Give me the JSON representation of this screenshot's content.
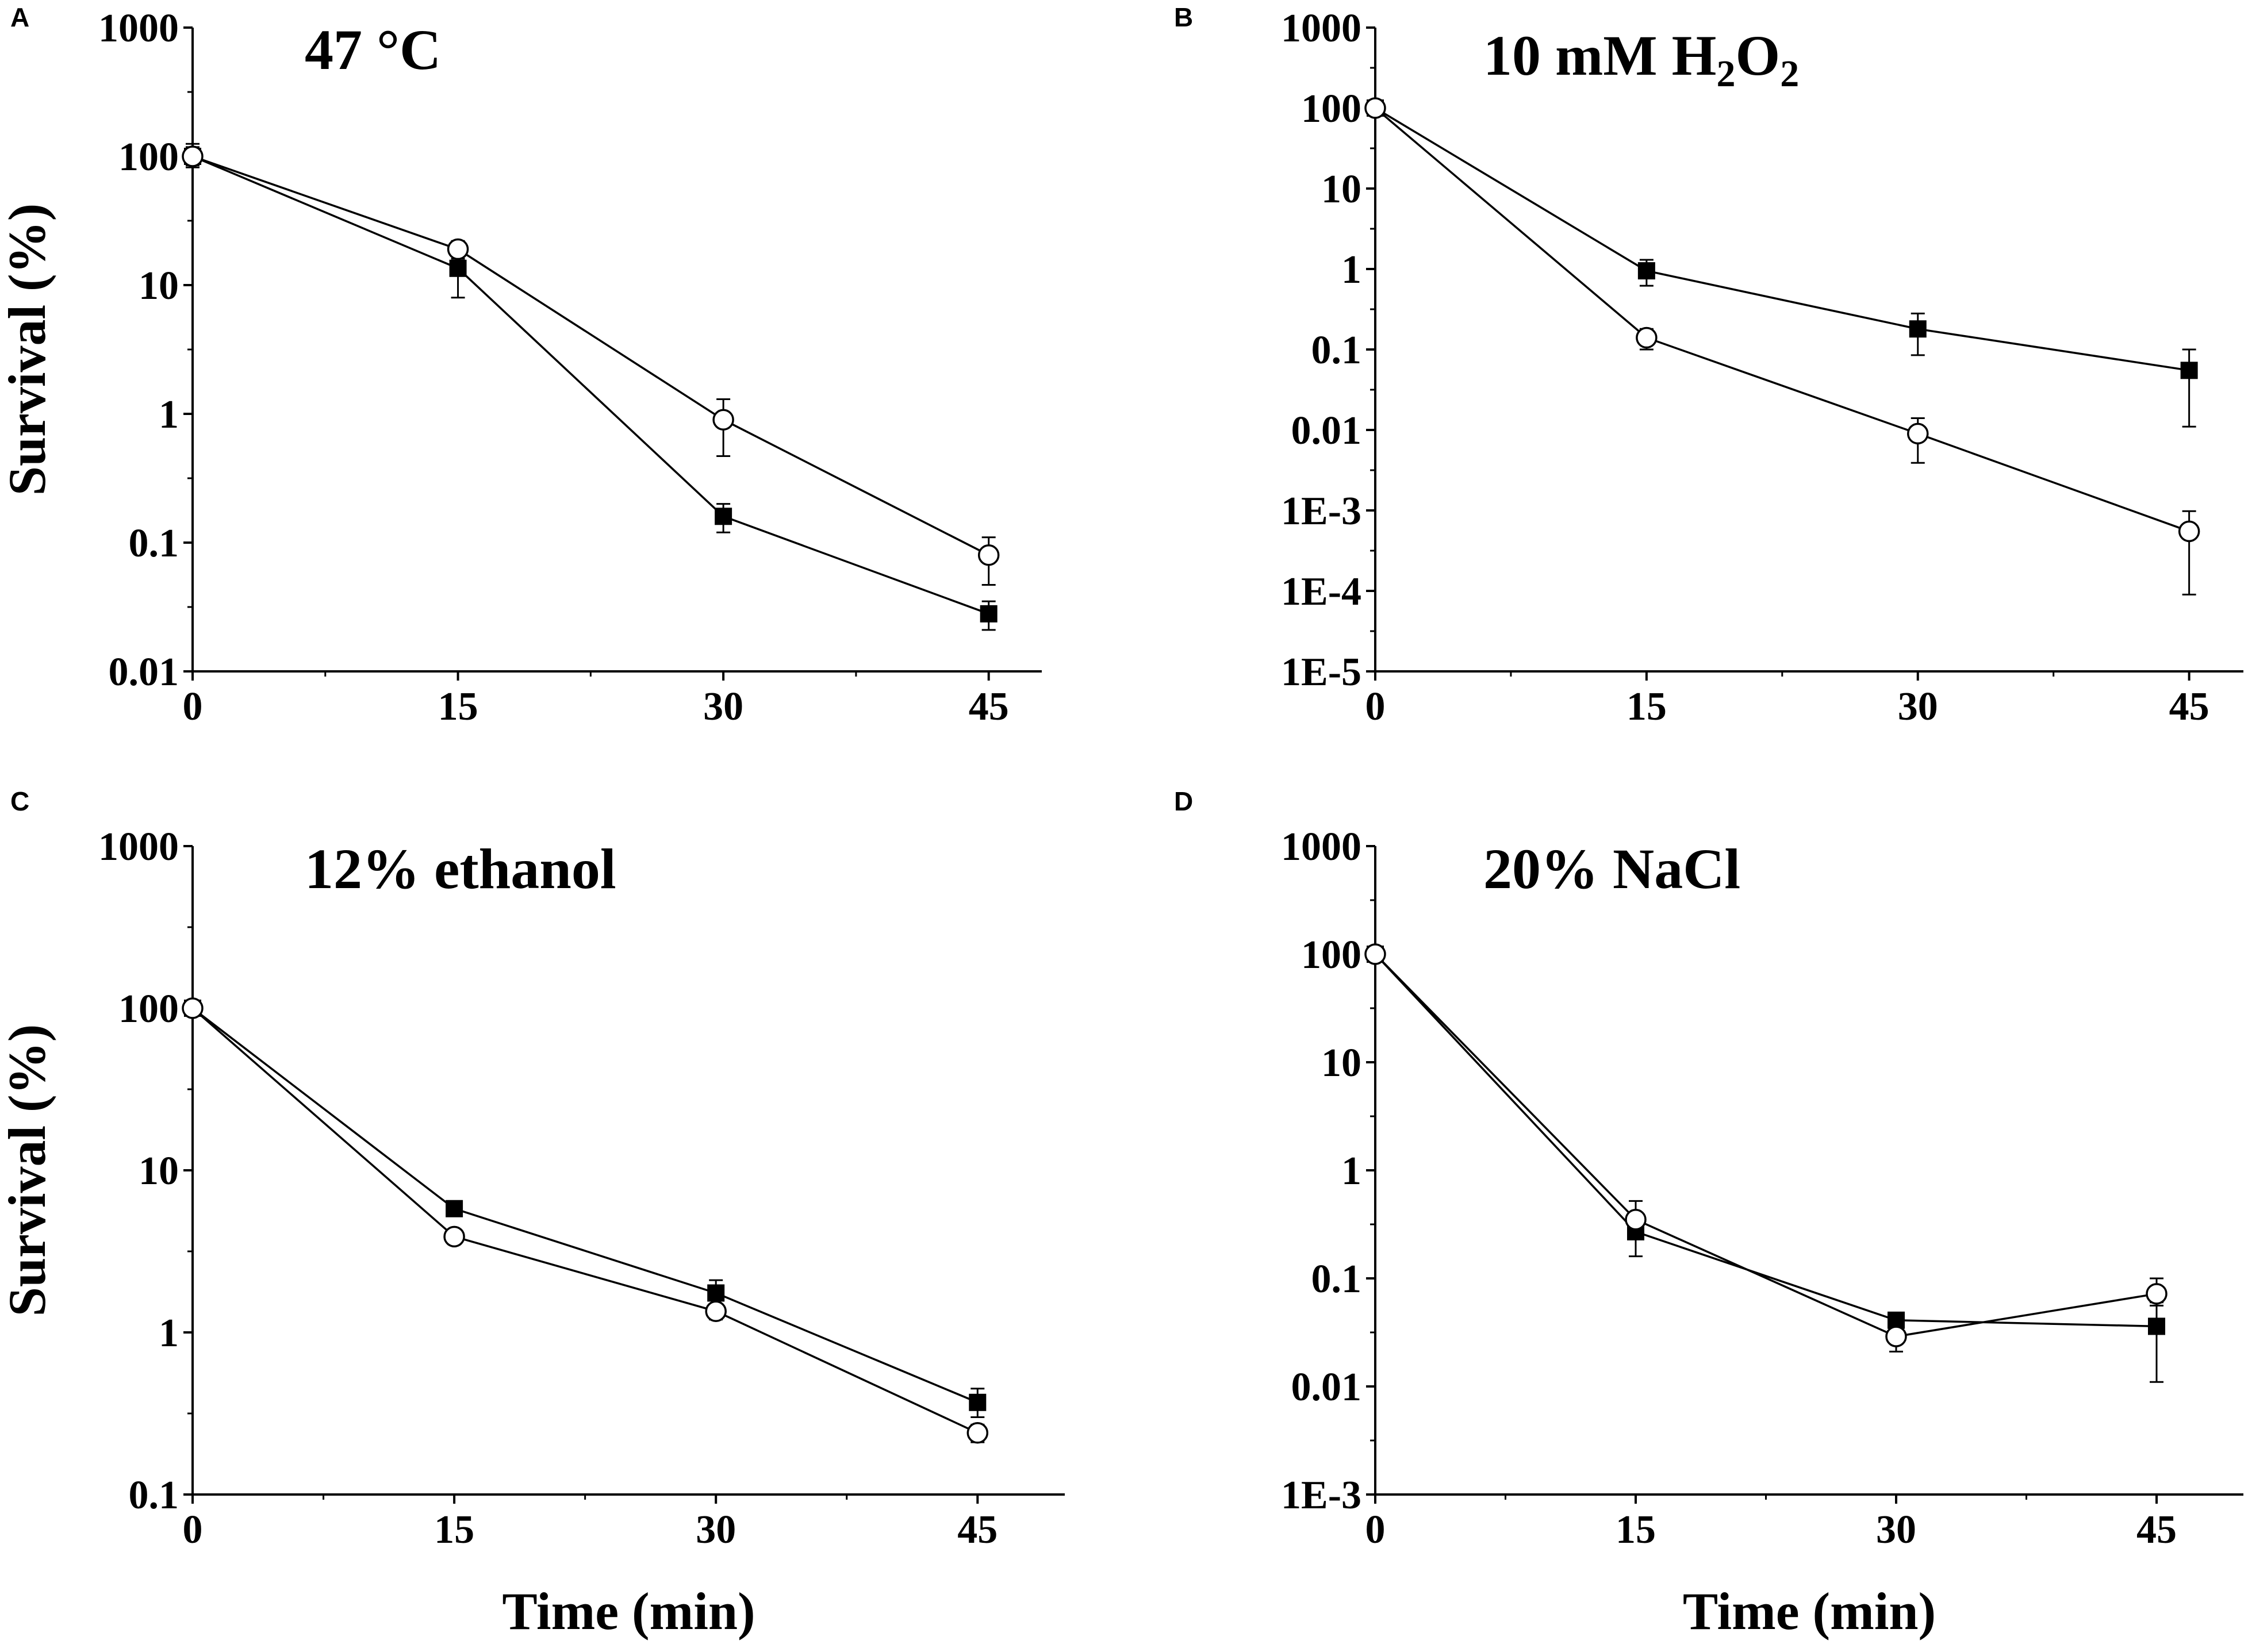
{
  "chart_data": [
    {
      "panel": "A",
      "type": "line",
      "title": "47 °C",
      "title_parts": [
        {
          "text": "47 °C",
          "sub": false
        }
      ],
      "xlabel": "",
      "ylabel": "Survival (%)",
      "xlim": [
        0,
        48
      ],
      "ylim": [
        0.01,
        1000
      ],
      "yscale": "log",
      "xticks": [
        0,
        15,
        30,
        45
      ],
      "xtick_labels": [
        "0",
        "15",
        "30",
        "45"
      ],
      "yticks": [
        0.01,
        0.1,
        1,
        10,
        100,
        1000
      ],
      "ytick_labels": [
        "0.01",
        "0.1",
        "1",
        "10",
        "100",
        "1000"
      ],
      "series": [
        {
          "name": "filled-square",
          "marker": "square",
          "x": [
            0,
            15,
            30,
            45
          ],
          "y": [
            100,
            13.5,
            0.16,
            0.028
          ],
          "err_low": [
            82,
            8,
            0.12,
            0.021
          ],
          "err_high": [
            125,
            17,
            0.2,
            0.035
          ]
        },
        {
          "name": "open-circle",
          "marker": "circle",
          "x": [
            0,
            15,
            30,
            45
          ],
          "y": [
            100,
            19,
            0.9,
            0.08
          ],
          "err_low": [
            85,
            16,
            0.47,
            0.047
          ],
          "err_high": [
            118,
            22,
            1.3,
            0.11
          ]
        }
      ]
    },
    {
      "panel": "B",
      "type": "line",
      "title": "10 mM H2O2",
      "title_parts": [
        {
          "text": "10 mM H",
          "sub": false
        },
        {
          "text": "2",
          "sub": true
        },
        {
          "text": "O",
          "sub": false
        },
        {
          "text": "2",
          "sub": true
        }
      ],
      "xlabel": "",
      "ylabel": "",
      "xlim": [
        0,
        48
      ],
      "ylim": [
        1e-05,
        1000
      ],
      "yscale": "log",
      "xticks": [
        0,
        15,
        30,
        45
      ],
      "xtick_labels": [
        "0",
        "15",
        "30",
        "45"
      ],
      "yticks": [
        1e-05,
        0.0001,
        0.001,
        0.01,
        0.1,
        1,
        10,
        100,
        1000
      ],
      "ytick_labels": [
        "1E-5",
        "1E-4",
        "1E-3",
        "0.01",
        "0.1",
        "1",
        "10",
        "100",
        "1000"
      ],
      "series": [
        {
          "name": "filled-square",
          "marker": "square",
          "x": [
            0,
            15,
            30,
            45
          ],
          "y": [
            100,
            0.95,
            0.18,
            0.055
          ],
          "err_low": [
            85,
            0.62,
            0.085,
            0.011
          ],
          "err_high": [
            115,
            1.3,
            0.28,
            0.1
          ]
        },
        {
          "name": "open-circle",
          "marker": "circle",
          "x": [
            0,
            15,
            30,
            45
          ],
          "y": [
            100,
            0.14,
            0.009,
            0.00055
          ],
          "err_low": [
            85,
            0.1,
            0.0039,
            9e-05
          ],
          "err_high": [
            115,
            0.18,
            0.014,
            0.00098
          ]
        }
      ]
    },
    {
      "panel": "C",
      "type": "line",
      "title": "12% ethanol",
      "title_parts": [
        {
          "text": "12% ethanol",
          "sub": false
        }
      ],
      "xlabel": "Time (min)",
      "ylabel": "Survival (%)",
      "xlim": [
        0,
        50
      ],
      "ylim": [
        0.1,
        1000
      ],
      "yscale": "log",
      "xticks": [
        0,
        15,
        30,
        45
      ],
      "xtick_labels": [
        "0",
        "15",
        "30",
        "45"
      ],
      "yticks": [
        0.1,
        1,
        10,
        100,
        1000
      ],
      "ytick_labels": [
        "0.1",
        "1",
        "10",
        "100",
        "1000"
      ],
      "series": [
        {
          "name": "filled-square",
          "marker": "square",
          "x": [
            0,
            15,
            30,
            45
          ],
          "y": [
            100,
            5.8,
            1.75,
            0.37
          ],
          "err_low": [
            90,
            5.3,
            1.4,
            0.3
          ],
          "err_high": [
            110,
            6.3,
            2.1,
            0.45
          ]
        },
        {
          "name": "open-circle",
          "marker": "circle",
          "x": [
            0,
            15,
            30,
            45
          ],
          "y": [
            100,
            3.9,
            1.35,
            0.24
          ],
          "err_low": [
            90,
            3.5,
            1.2,
            0.21
          ],
          "err_high": [
            110,
            4.3,
            1.5,
            0.27
          ]
        }
      ]
    },
    {
      "panel": "D",
      "type": "line",
      "title": "20% NaCl",
      "title_parts": [
        {
          "text": "20% NaCl",
          "sub": false
        }
      ],
      "xlabel": "Time (min)",
      "ylabel": "",
      "xlim": [
        0,
        50
      ],
      "ylim": [
        0.001,
        1000
      ],
      "yscale": "log",
      "xticks": [
        0,
        15,
        30,
        45
      ],
      "xtick_labels": [
        "0",
        "15",
        "30",
        "45"
      ],
      "yticks": [
        0.001,
        0.01,
        0.1,
        1,
        10,
        100,
        1000
      ],
      "ytick_labels": [
        "1E-3",
        "0.01",
        "0.1",
        "1",
        "10",
        "100",
        "1000"
      ],
      "series": [
        {
          "name": "filled-square",
          "marker": "square",
          "x": [
            0,
            15,
            30,
            45
          ],
          "y": [
            100,
            0.27,
            0.041,
            0.036
          ],
          "err_low": [
            88,
            0.16,
            0.036,
            0.011
          ],
          "err_high": [
            112,
            0.4,
            0.046,
            0.06
          ]
        },
        {
          "name": "open-circle",
          "marker": "circle",
          "x": [
            0,
            15,
            30,
            45
          ],
          "y": [
            100,
            0.35,
            0.029,
            0.072
          ],
          "err_low": [
            88,
            0.24,
            0.021,
            0.056
          ],
          "err_high": [
            112,
            0.52,
            0.037,
            0.1
          ]
        }
      ]
    }
  ]
}
